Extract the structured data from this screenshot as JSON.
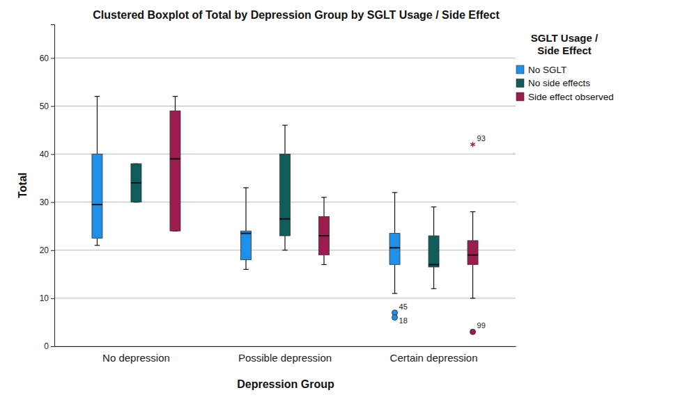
{
  "chart_data": {
    "type": "box",
    "title": "Clustered Boxplot of Total by Depression Group by SGLT Usage / Side Effect",
    "x_label": "Depression Group",
    "y_label": "Total",
    "legend_title": [
      "SGLT Usage /",
      "Side Effect"
    ],
    "legend": "right",
    "grid": true,
    "categories": [
      "No depression",
      "Possible depression",
      "Certain depression"
    ],
    "ylim": [
      0,
      67
    ],
    "yticks": [
      0,
      10,
      20,
      30,
      40,
      50,
      60
    ],
    "series": [
      {
        "name": "No SGLT",
        "color": "#1f8fe8",
        "min": [
          21,
          16,
          11
        ],
        "q1": [
          22.5,
          18,
          17
        ],
        "median": [
          29.5,
          23.5,
          20.5
        ],
        "q3": [
          40,
          24,
          23.5
        ],
        "max": [
          52,
          33,
          32
        ],
        "outliers": [
          [],
          [],
          [
            {
              "value": 7,
              "label": "45",
              "marker": "circle"
            },
            {
              "value": 6,
              "label": "18",
              "marker": "circle"
            }
          ]
        ]
      },
      {
        "name": "No side effects",
        "color": "#0f5c5a",
        "min": [
          30,
          20,
          12
        ],
        "q1": [
          30,
          23,
          16.5
        ],
        "median": [
          34,
          26.5,
          17
        ],
        "q3": [
          38,
          40,
          23
        ],
        "max": [
          38,
          46,
          29
        ],
        "outliers": [
          [],
          [],
          []
        ]
      },
      {
        "name": "Side effect observed",
        "color": "#9c1c50",
        "min": [
          24,
          17,
          10
        ],
        "q1": [
          24,
          19,
          17
        ],
        "median": [
          39,
          23,
          19
        ],
        "q3": [
          49,
          27,
          22
        ],
        "max": [
          52,
          31,
          28
        ],
        "outliers": [
          [],
          [],
          [
            {
              "value": 42,
              "label": "93",
              "marker": "star"
            },
            {
              "value": 3,
              "label": "99",
              "marker": "circle"
            }
          ]
        ]
      }
    ]
  }
}
